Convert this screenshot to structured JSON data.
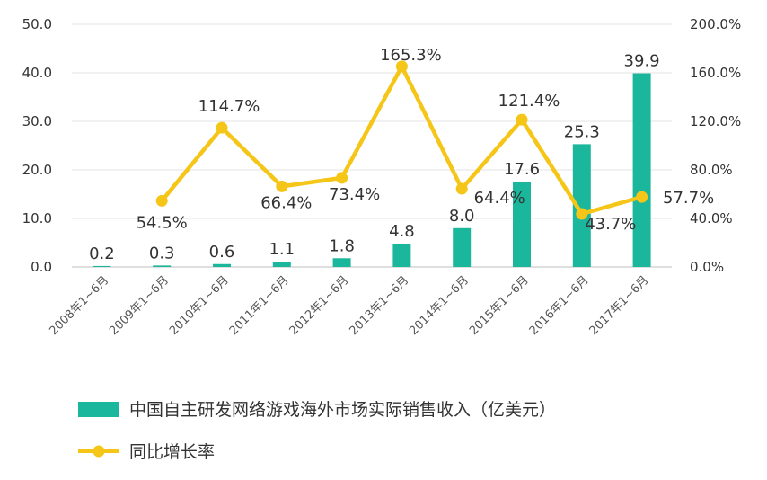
{
  "chart_data": {
    "type": "bar+line",
    "categories": [
      "2008年1~6月",
      "2009年1~6月",
      "2010年1~6月",
      "2011年1~6月",
      "2012年1~6月",
      "2013年1~6月",
      "2014年1~6月",
      "2015年1~6月",
      "2016年1~6月",
      "2017年1~6月"
    ],
    "series": [
      {
        "name": "中国自主研发网络游戏海外市场实际销售收入（亿美元）",
        "type": "bar",
        "axis": "left",
        "color": "#1BB79C",
        "values": [
          0.2,
          0.3,
          0.6,
          1.1,
          1.8,
          4.8,
          8.0,
          17.6,
          25.3,
          39.9
        ],
        "labels": [
          "0.2",
          "0.3",
          "0.6",
          "1.1",
          "1.8",
          "4.8",
          "8.0",
          "17.6",
          "25.3",
          "39.9"
        ]
      },
      {
        "name": "同比增长率",
        "type": "line",
        "axis": "right",
        "color": "#F5C518",
        "values": [
          null,
          54.5,
          114.7,
          66.4,
          73.4,
          165.3,
          64.4,
          121.4,
          43.7,
          57.7
        ],
        "labels": [
          null,
          "54.5%",
          "114.7%",
          "66.4%",
          "73.4%",
          "165.3%",
          "64.4%",
          "121.4%",
          "43.7%",
          "57.7%"
        ]
      }
    ],
    "y_left": {
      "range": [
        0,
        50
      ],
      "ticks": [
        "0.0",
        "10.0",
        "20.0",
        "30.0",
        "40.0",
        "50.0"
      ]
    },
    "y_right": {
      "range": [
        0,
        200
      ],
      "ticks": [
        "0.0%",
        "40.0%",
        "80.0%",
        "120.0%",
        "160.0%",
        "200.0%"
      ]
    },
    "grid": true,
    "legend_position": "bottom-left"
  }
}
